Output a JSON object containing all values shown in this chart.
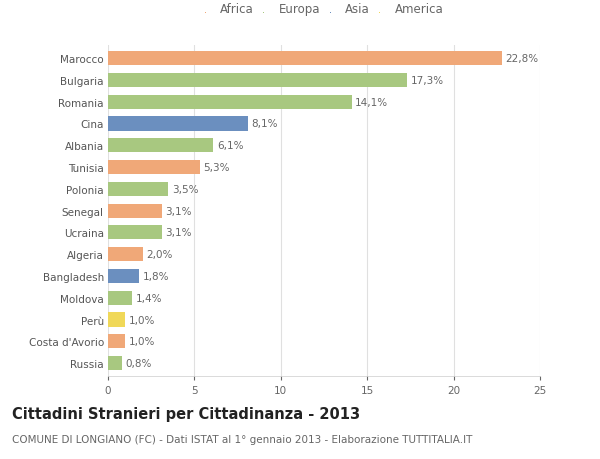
{
  "countries": [
    "Marocco",
    "Bulgaria",
    "Romania",
    "Cina",
    "Albania",
    "Tunisia",
    "Polonia",
    "Senegal",
    "Ucraina",
    "Algeria",
    "Bangladesh",
    "Moldova",
    "Perù",
    "Costa d'Avorio",
    "Russia"
  ],
  "values": [
    22.8,
    17.3,
    14.1,
    8.1,
    6.1,
    5.3,
    3.5,
    3.1,
    3.1,
    2.0,
    1.8,
    1.4,
    1.0,
    1.0,
    0.8
  ],
  "labels": [
    "22,8%",
    "17,3%",
    "14,1%",
    "8,1%",
    "6,1%",
    "5,3%",
    "3,5%",
    "3,1%",
    "3,1%",
    "2,0%",
    "1,8%",
    "1,4%",
    "1,0%",
    "1,0%",
    "0,8%"
  ],
  "continents": [
    "Africa",
    "Europa",
    "Europa",
    "Asia",
    "Europa",
    "Africa",
    "Europa",
    "Africa",
    "Europa",
    "Africa",
    "Asia",
    "Europa",
    "America",
    "Africa",
    "Europa"
  ],
  "continent_colors": {
    "Africa": "#F0A878",
    "Europa": "#A8C880",
    "Asia": "#6B8FBF",
    "America": "#F0D858"
  },
  "legend_order": [
    "Africa",
    "Europa",
    "Asia",
    "America"
  ],
  "title": "Cittadini Stranieri per Cittadinanza - 2013",
  "subtitle": "COMUNE DI LONGIANO (FC) - Dati ISTAT al 1° gennaio 2013 - Elaborazione TUTTITALIA.IT",
  "xlim": [
    0,
    25
  ],
  "xticks": [
    0,
    5,
    10,
    15,
    20,
    25
  ],
  "background_color": "#ffffff",
  "grid_color": "#e0e0e0",
  "bar_height": 0.65,
  "title_fontsize": 10.5,
  "subtitle_fontsize": 7.5,
  "label_fontsize": 7.5,
  "tick_fontsize": 7.5,
  "legend_fontsize": 8.5
}
